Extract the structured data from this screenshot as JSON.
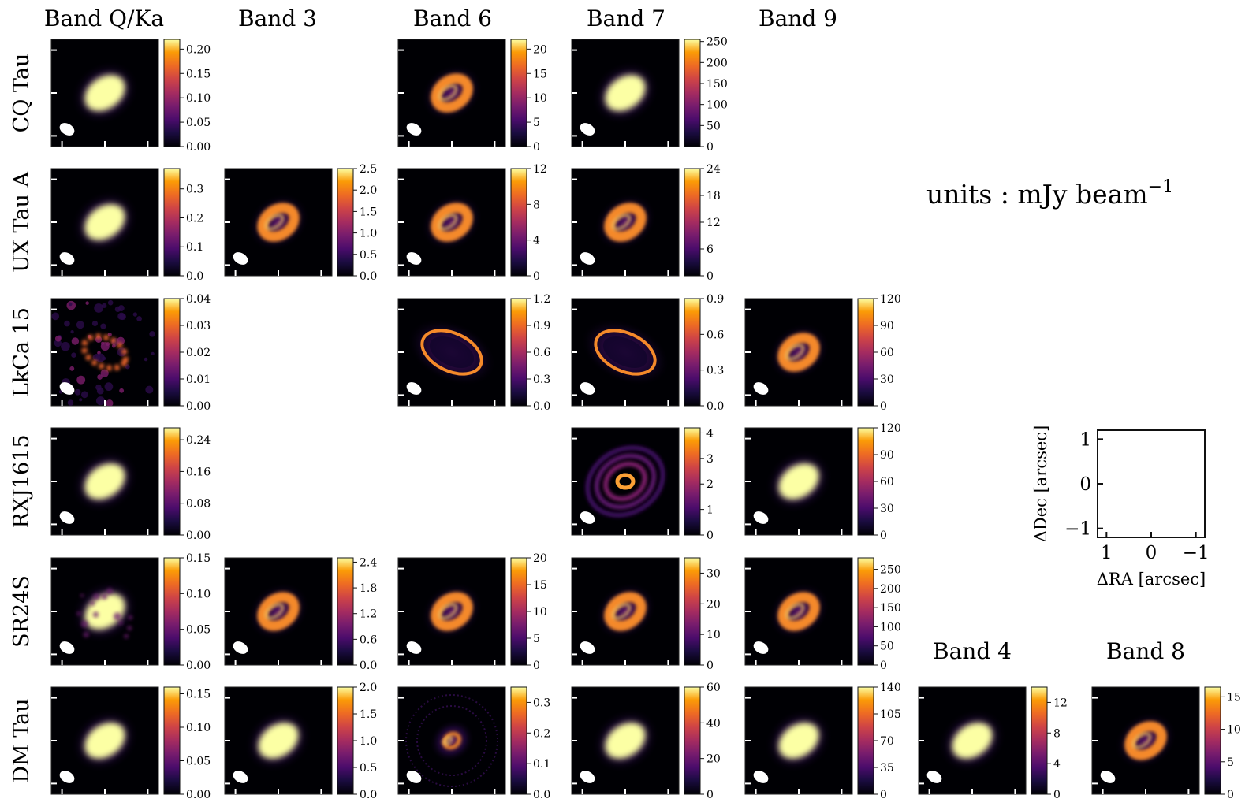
{
  "chart_data": {
    "type": "heatmap",
    "colormap": "inferno",
    "units_label": "units : mJy beam",
    "units_exponent": "−1",
    "column_titles": [
      "Band Q/Ka",
      "Band 3",
      "Band 6",
      "Band 7",
      "Band 9"
    ],
    "extra_titles": [
      "Band 4",
      "Band 8"
    ],
    "row_labels": [
      "CQ Tau",
      "UX Tau A",
      "LkCa 15",
      "RXJ1615",
      "SR24S",
      "DM Tau"
    ],
    "panels": [
      {
        "id": "cqtau-bandqka",
        "row": 0,
        "col": 0,
        "morph": "blob",
        "ticks": [
          "0.00",
          "0.05",
          "0.10",
          "0.15",
          "0.20"
        ],
        "vmax": 0.22
      },
      {
        "id": "cqtau-band6",
        "row": 0,
        "col": 2,
        "morph": "ring",
        "ticks": [
          "0",
          "5",
          "10",
          "15",
          "20"
        ],
        "vmax": 22
      },
      {
        "id": "cqtau-band7",
        "row": 0,
        "col": 3,
        "morph": "blob",
        "ticks": [
          "0",
          "50",
          "100",
          "150",
          "200",
          "250"
        ],
        "vmax": 255
      },
      {
        "id": "uxtau-bandqka",
        "row": 1,
        "col": 0,
        "morph": "blob",
        "ticks": [
          "0.0",
          "0.1",
          "0.2",
          "0.3"
        ],
        "vmax": 0.37
      },
      {
        "id": "uxtau-band3",
        "row": 1,
        "col": 1,
        "morph": "ring",
        "ticks": [
          "0.0",
          "0.5",
          "1.0",
          "1.5",
          "2.0",
          "2.5"
        ],
        "vmax": 2.5
      },
      {
        "id": "uxtau-band6",
        "row": 1,
        "col": 2,
        "morph": "ring",
        "ticks": [
          "0",
          "4",
          "8",
          "12"
        ],
        "vmax": 12
      },
      {
        "id": "uxtau-band7",
        "row": 1,
        "col": 3,
        "morph": "ring",
        "ticks": [
          "0",
          "6",
          "12",
          "18",
          "24"
        ],
        "vmax": 24
      },
      {
        "id": "lkca15-bandqka",
        "row": 2,
        "col": 0,
        "morph": "noisy-ring",
        "ticks": [
          "0.00",
          "0.01",
          "0.02",
          "0.03",
          "0.04"
        ],
        "vmax": 0.04
      },
      {
        "id": "lkca15-band6",
        "row": 2,
        "col": 2,
        "morph": "thin-ring",
        "ticks": [
          "0.0",
          "0.3",
          "0.6",
          "0.9",
          "1.2"
        ],
        "vmax": 1.2
      },
      {
        "id": "lkca15-band7",
        "row": 2,
        "col": 3,
        "morph": "thin-ring",
        "ticks": [
          "0.0",
          "0.3",
          "0.6",
          "0.9"
        ],
        "vmax": 0.9
      },
      {
        "id": "lkca15-band9",
        "row": 2,
        "col": 4,
        "morph": "ring",
        "ticks": [
          "0",
          "30",
          "60",
          "90",
          "120"
        ],
        "vmax": 120
      },
      {
        "id": "rxj1615-bandqka",
        "row": 3,
        "col": 0,
        "morph": "blob",
        "ticks": [
          "0.00",
          "0.08",
          "0.16",
          "0.24"
        ],
        "vmax": 0.27
      },
      {
        "id": "rxj1615-band7",
        "row": 3,
        "col": 3,
        "morph": "multi-ring",
        "ticks": [
          "0",
          "1",
          "2",
          "3",
          "4"
        ],
        "vmax": 4.2
      },
      {
        "id": "rxj1615-band9",
        "row": 3,
        "col": 4,
        "morph": "blob",
        "ticks": [
          "0",
          "30",
          "60",
          "90",
          "120"
        ],
        "vmax": 120
      },
      {
        "id": "sr24s-bandqka",
        "row": 4,
        "col": 0,
        "morph": "noisy-blob",
        "ticks": [
          "0.00",
          "0.05",
          "0.10",
          "0.15"
        ],
        "vmax": 0.15
      },
      {
        "id": "sr24s-band3",
        "row": 4,
        "col": 1,
        "morph": "ring",
        "ticks": [
          "0.0",
          "0.6",
          "1.2",
          "1.8",
          "2.4"
        ],
        "vmax": 2.5
      },
      {
        "id": "sr24s-band6",
        "row": 4,
        "col": 2,
        "morph": "ring",
        "ticks": [
          "0",
          "5",
          "10",
          "15",
          "20"
        ],
        "vmax": 20
      },
      {
        "id": "sr24s-band7",
        "row": 4,
        "col": 3,
        "morph": "ring",
        "ticks": [
          "0",
          "10",
          "20",
          "30"
        ],
        "vmax": 35
      },
      {
        "id": "sr24s-band9",
        "row": 4,
        "col": 4,
        "morph": "ring",
        "ticks": [
          "0",
          "50",
          "100",
          "150",
          "200",
          "250"
        ],
        "vmax": 280
      },
      {
        "id": "dmtau-bandqka",
        "row": 5,
        "col": 0,
        "morph": "blob",
        "ticks": [
          "0.00",
          "0.05",
          "0.10",
          "0.15"
        ],
        "vmax": 0.16
      },
      {
        "id": "dmtau-band3",
        "row": 5,
        "col": 1,
        "morph": "blob",
        "ticks": [
          "0.0",
          "0.5",
          "1.0",
          "1.5",
          "2.0"
        ],
        "vmax": 2.0
      },
      {
        "id": "dmtau-band6",
        "row": 5,
        "col": 2,
        "morph": "small-ring",
        "ticks": [
          "0.0",
          "0.1",
          "0.2",
          "0.3"
        ],
        "vmax": 0.35
      },
      {
        "id": "dmtau-band7",
        "row": 5,
        "col": 3,
        "morph": "blob",
        "ticks": [
          "0",
          "20",
          "40",
          "60"
        ],
        "vmax": 60
      },
      {
        "id": "dmtau-band9",
        "row": 5,
        "col": 4,
        "morph": "blob",
        "ticks": [
          "0",
          "35",
          "70",
          "105",
          "140"
        ],
        "vmax": 140
      },
      {
        "id": "dmtau-band4",
        "row": 5,
        "col": 5,
        "morph": "blob",
        "ticks": [
          "0",
          "4",
          "8",
          "12"
        ],
        "vmax": 14
      },
      {
        "id": "dmtau-band8",
        "row": 5,
        "col": 6,
        "morph": "ring",
        "ticks": [
          "0",
          "5",
          "10",
          "15"
        ],
        "vmax": 16.5
      }
    ],
    "reference_axes": {
      "xlabel": "ΔRA [arcsec]",
      "ylabel": "ΔDec [arcsec]",
      "xticks": [
        "1",
        "0",
        "−1"
      ],
      "yticks": [
        "1",
        "0",
        "−1"
      ],
      "xlim": [
        1.2,
        -1.2
      ],
      "ylim": [
        -1.2,
        1.2
      ]
    }
  }
}
